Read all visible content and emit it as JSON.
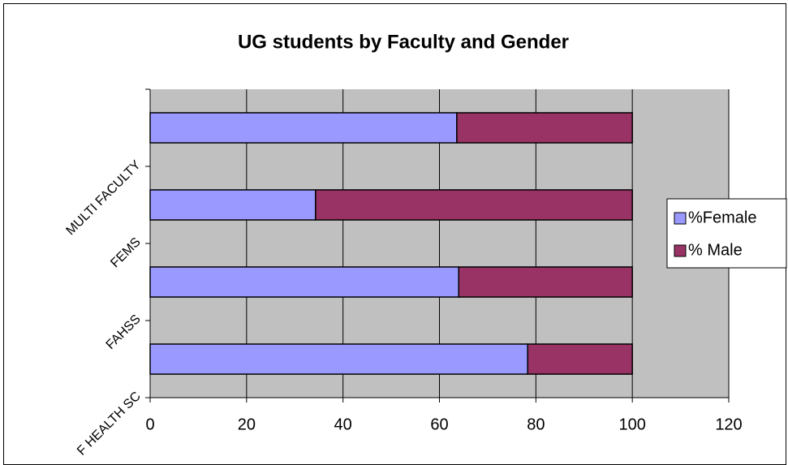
{
  "chart_data": {
    "type": "stacked_barh",
    "title": "UG students by Faculty and Gender",
    "categories": [
      "F HEALTH SC",
      "FAHSS",
      "FEMS",
      "MULTI FACULTY"
    ],
    "series": [
      {
        "name": "%Female",
        "color": "#9999ff",
        "values": [
          78.3,
          64,
          34.3,
          63.6
        ]
      },
      {
        "name": "% Male",
        "color": "#993366",
        "values": [
          21.7,
          36,
          65.7,
          36.4
        ]
      }
    ],
    "xlim": [
      0,
      120
    ],
    "xticks": [
      0,
      20,
      40,
      60,
      80,
      100,
      120
    ],
    "grid": true,
    "legend": "right"
  }
}
